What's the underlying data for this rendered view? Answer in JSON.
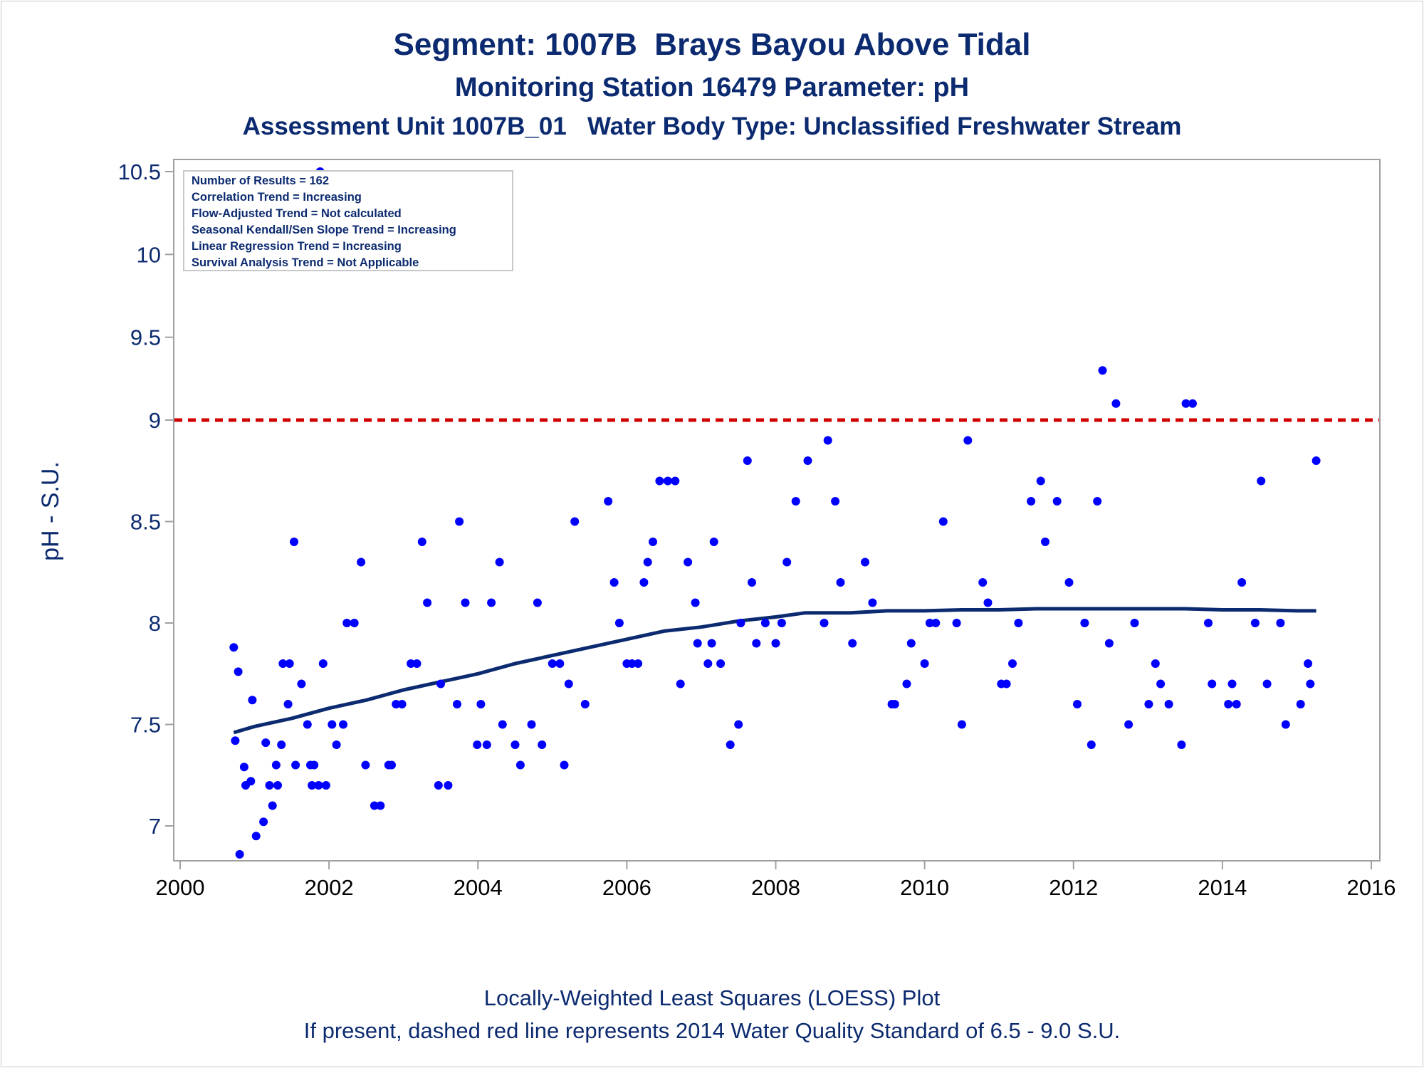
{
  "titles": {
    "line1": "Segment: 1007B  Brays Bayou Above Tidal",
    "line2": "Monitoring Station 16479 Parameter: pH",
    "line3": "Assessment Unit 1007B_01   Water Body Type: Unclassified Freshwater Stream"
  },
  "footer": {
    "line1": "Locally-Weighted Least Squares (LOESS) Plot",
    "line2": "If present, dashed red line represents 2014 Water Quality Standard of 6.5 - 9.0 S.U."
  },
  "stats_box": {
    "lines": [
      "Number of Results = 162",
      "Correlation Trend = Increasing",
      "Flow-Adjusted Trend = Not calculated",
      "Seasonal Kendall/Sen Slope Trend = Increasing",
      "Linear Regression Trend = Increasing",
      "Survival Analysis Trend = Not Applicable"
    ]
  },
  "colors": {
    "title": "#0b2a6f",
    "points": "#0000ff",
    "loess": "#0b2a6f",
    "standard_line": "#d00000",
    "axis": "#a0a0a0"
  },
  "chart_data": {
    "type": "scatter",
    "ylabel": "pH - S.U.",
    "xlabel": "",
    "xlim": [
      2000,
      2016
    ],
    "ylim": [
      6.9,
      10.5
    ],
    "x_ticks": [
      2000,
      2002,
      2004,
      2006,
      2008,
      2010,
      2012,
      2014,
      2016
    ],
    "y_ticks": [
      7,
      7.5,
      8,
      8.5,
      9,
      9.5,
      10,
      10.5
    ],
    "y_tick_labels": [
      "7",
      "7.5",
      "8",
      "8.5",
      "9",
      "9.5",
      "10",
      "10.5"
    ],
    "standard_line": 9.0,
    "points": [
      [
        2000.72,
        7.88
      ],
      [
        2000.74,
        7.42
      ],
      [
        2000.78,
        7.76
      ],
      [
        2000.8,
        6.86
      ],
      [
        2000.86,
        7.29
      ],
      [
        2000.88,
        7.2
      ],
      [
        2000.95,
        7.22
      ],
      [
        2000.97,
        7.62
      ],
      [
        2001.02,
        6.95
      ],
      [
        2001.12,
        7.02
      ],
      [
        2001.15,
        7.41
      ],
      [
        2001.2,
        7.2
      ],
      [
        2001.24,
        7.1
      ],
      [
        2001.29,
        7.3
      ],
      [
        2001.31,
        7.2
      ],
      [
        2001.36,
        7.4
      ],
      [
        2001.38,
        7.8
      ],
      [
        2001.45,
        7.6
      ],
      [
        2001.47,
        7.8
      ],
      [
        2001.53,
        8.4
      ],
      [
        2001.55,
        7.3
      ],
      [
        2001.63,
        7.7
      ],
      [
        2001.71,
        7.5
      ],
      [
        2001.75,
        7.3
      ],
      [
        2001.77,
        7.2
      ],
      [
        2001.8,
        7.3
      ],
      [
        2001.86,
        7.2
      ],
      [
        2001.88,
        10.5
      ],
      [
        2001.92,
        7.8
      ],
      [
        2001.96,
        7.2
      ],
      [
        2002.04,
        7.5
      ],
      [
        2002.1,
        7.4
      ],
      [
        2002.19,
        7.5
      ],
      [
        2002.24,
        8.0
      ],
      [
        2002.34,
        8.0
      ],
      [
        2002.43,
        8.3
      ],
      [
        2002.49,
        7.3
      ],
      [
        2002.61,
        7.1
      ],
      [
        2002.69,
        7.1
      ],
      [
        2002.8,
        7.3
      ],
      [
        2002.84,
        7.3
      ],
      [
        2002.9,
        7.6
      ],
      [
        2002.98,
        7.6
      ],
      [
        2003.1,
        7.8
      ],
      [
        2003.18,
        7.8
      ],
      [
        2003.25,
        8.4
      ],
      [
        2003.32,
        8.1
      ],
      [
        2003.47,
        7.2
      ],
      [
        2003.5,
        7.7
      ],
      [
        2003.6,
        7.2
      ],
      [
        2003.72,
        7.6
      ],
      [
        2003.75,
        8.5
      ],
      [
        2003.83,
        8.1
      ],
      [
        2003.99,
        7.4
      ],
      [
        2004.04,
        7.6
      ],
      [
        2004.12,
        7.4
      ],
      [
        2004.18,
        8.1
      ],
      [
        2004.29,
        8.3
      ],
      [
        2004.33,
        7.5
      ],
      [
        2004.5,
        7.4
      ],
      [
        2004.57,
        7.3
      ],
      [
        2004.72,
        7.5
      ],
      [
        2004.8,
        8.1
      ],
      [
        2004.86,
        7.4
      ],
      [
        2005.0,
        7.8
      ],
      [
        2005.1,
        7.8
      ],
      [
        2005.16,
        7.3
      ],
      [
        2005.22,
        7.7
      ],
      [
        2005.3,
        8.5
      ],
      [
        2005.44,
        7.6
      ],
      [
        2005.75,
        8.6
      ],
      [
        2005.83,
        8.2
      ],
      [
        2005.9,
        8.0
      ],
      [
        2006.0,
        7.8
      ],
      [
        2006.07,
        7.8
      ],
      [
        2006.15,
        7.8
      ],
      [
        2006.23,
        8.2
      ],
      [
        2006.28,
        8.3
      ],
      [
        2006.35,
        8.4
      ],
      [
        2006.44,
        8.7
      ],
      [
        2006.55,
        8.7
      ],
      [
        2006.65,
        8.7
      ],
      [
        2006.72,
        7.7
      ],
      [
        2006.82,
        8.3
      ],
      [
        2006.92,
        8.1
      ],
      [
        2006.95,
        7.9
      ],
      [
        2007.09,
        7.8
      ],
      [
        2007.14,
        7.9
      ],
      [
        2007.17,
        8.4
      ],
      [
        2007.26,
        7.8
      ],
      [
        2007.39,
        7.4
      ],
      [
        2007.5,
        7.5
      ],
      [
        2007.53,
        8.0
      ],
      [
        2007.62,
        8.8
      ],
      [
        2007.68,
        8.2
      ],
      [
        2007.74,
        7.9
      ],
      [
        2007.86,
        8.0
      ],
      [
        2008.0,
        7.9
      ],
      [
        2008.08,
        8.0
      ],
      [
        2008.15,
        8.3
      ],
      [
        2008.27,
        8.6
      ],
      [
        2008.43,
        8.8
      ],
      [
        2008.65,
        8.0
      ],
      [
        2008.7,
        8.9
      ],
      [
        2008.8,
        8.6
      ],
      [
        2008.87,
        8.2
      ],
      [
        2009.03,
        7.9
      ],
      [
        2009.2,
        8.3
      ],
      [
        2009.3,
        8.1
      ],
      [
        2009.56,
        7.6
      ],
      [
        2009.6,
        7.6
      ],
      [
        2009.76,
        7.7
      ],
      [
        2009.82,
        7.9
      ],
      [
        2010.0,
        7.8
      ],
      [
        2010.07,
        8.0
      ],
      [
        2010.15,
        8.0
      ],
      [
        2010.25,
        8.5
      ],
      [
        2010.43,
        8.0
      ],
      [
        2010.5,
        7.5
      ],
      [
        2010.58,
        8.9
      ],
      [
        2010.78,
        8.2
      ],
      [
        2010.85,
        8.1
      ],
      [
        2011.03,
        7.7
      ],
      [
        2011.1,
        7.7
      ],
      [
        2011.18,
        7.8
      ],
      [
        2011.26,
        8.0
      ],
      [
        2011.43,
        8.6
      ],
      [
        2011.56,
        8.7
      ],
      [
        2011.62,
        8.4
      ],
      [
        2011.78,
        8.6
      ],
      [
        2011.94,
        8.2
      ],
      [
        2012.05,
        7.6
      ],
      [
        2012.15,
        8.0
      ],
      [
        2012.24,
        7.4
      ],
      [
        2012.32,
        8.6
      ],
      [
        2012.39,
        9.3
      ],
      [
        2012.48,
        7.9
      ],
      [
        2012.57,
        9.1
      ],
      [
        2012.74,
        7.5
      ],
      [
        2012.82,
        8.0
      ],
      [
        2013.01,
        7.6
      ],
      [
        2013.1,
        7.8
      ],
      [
        2013.17,
        7.7
      ],
      [
        2013.28,
        7.6
      ],
      [
        2013.45,
        7.4
      ],
      [
        2013.51,
        9.1
      ],
      [
        2013.6,
        9.1
      ],
      [
        2013.81,
        8.0
      ],
      [
        2013.86,
        7.7
      ],
      [
        2014.08,
        7.6
      ],
      [
        2014.13,
        7.7
      ],
      [
        2014.19,
        7.6
      ],
      [
        2014.26,
        8.2
      ],
      [
        2014.44,
        8.0
      ],
      [
        2014.52,
        8.7
      ],
      [
        2014.6,
        7.7
      ],
      [
        2014.78,
        8.0
      ],
      [
        2014.85,
        7.5
      ],
      [
        2015.05,
        7.6
      ],
      [
        2015.15,
        7.8
      ],
      [
        2015.18,
        7.7
      ],
      [
        2015.26,
        8.8
      ]
    ],
    "loess": [
      [
        2000.72,
        7.46
      ],
      [
        2001.0,
        7.49
      ],
      [
        2001.5,
        7.53
      ],
      [
        2002.0,
        7.58
      ],
      [
        2002.5,
        7.62
      ],
      [
        2003.0,
        7.67
      ],
      [
        2003.5,
        7.71
      ],
      [
        2004.0,
        7.75
      ],
      [
        2004.5,
        7.8
      ],
      [
        2005.0,
        7.84
      ],
      [
        2005.5,
        7.88
      ],
      [
        2006.0,
        7.92
      ],
      [
        2006.5,
        7.96
      ],
      [
        2007.0,
        7.98
      ],
      [
        2007.5,
        8.01
      ],
      [
        2008.0,
        8.03
      ],
      [
        2008.4,
        8.05
      ],
      [
        2009.0,
        8.05
      ],
      [
        2009.5,
        8.06
      ],
      [
        2010.0,
        8.06
      ],
      [
        2010.5,
        8.065
      ],
      [
        2011.0,
        8.065
      ],
      [
        2011.5,
        8.07
      ],
      [
        2012.0,
        8.07
      ],
      [
        2012.5,
        8.07
      ],
      [
        2013.0,
        8.07
      ],
      [
        2013.5,
        8.07
      ],
      [
        2014.0,
        8.065
      ],
      [
        2014.5,
        8.065
      ],
      [
        2015.0,
        8.06
      ],
      [
        2015.26,
        8.06
      ]
    ]
  }
}
